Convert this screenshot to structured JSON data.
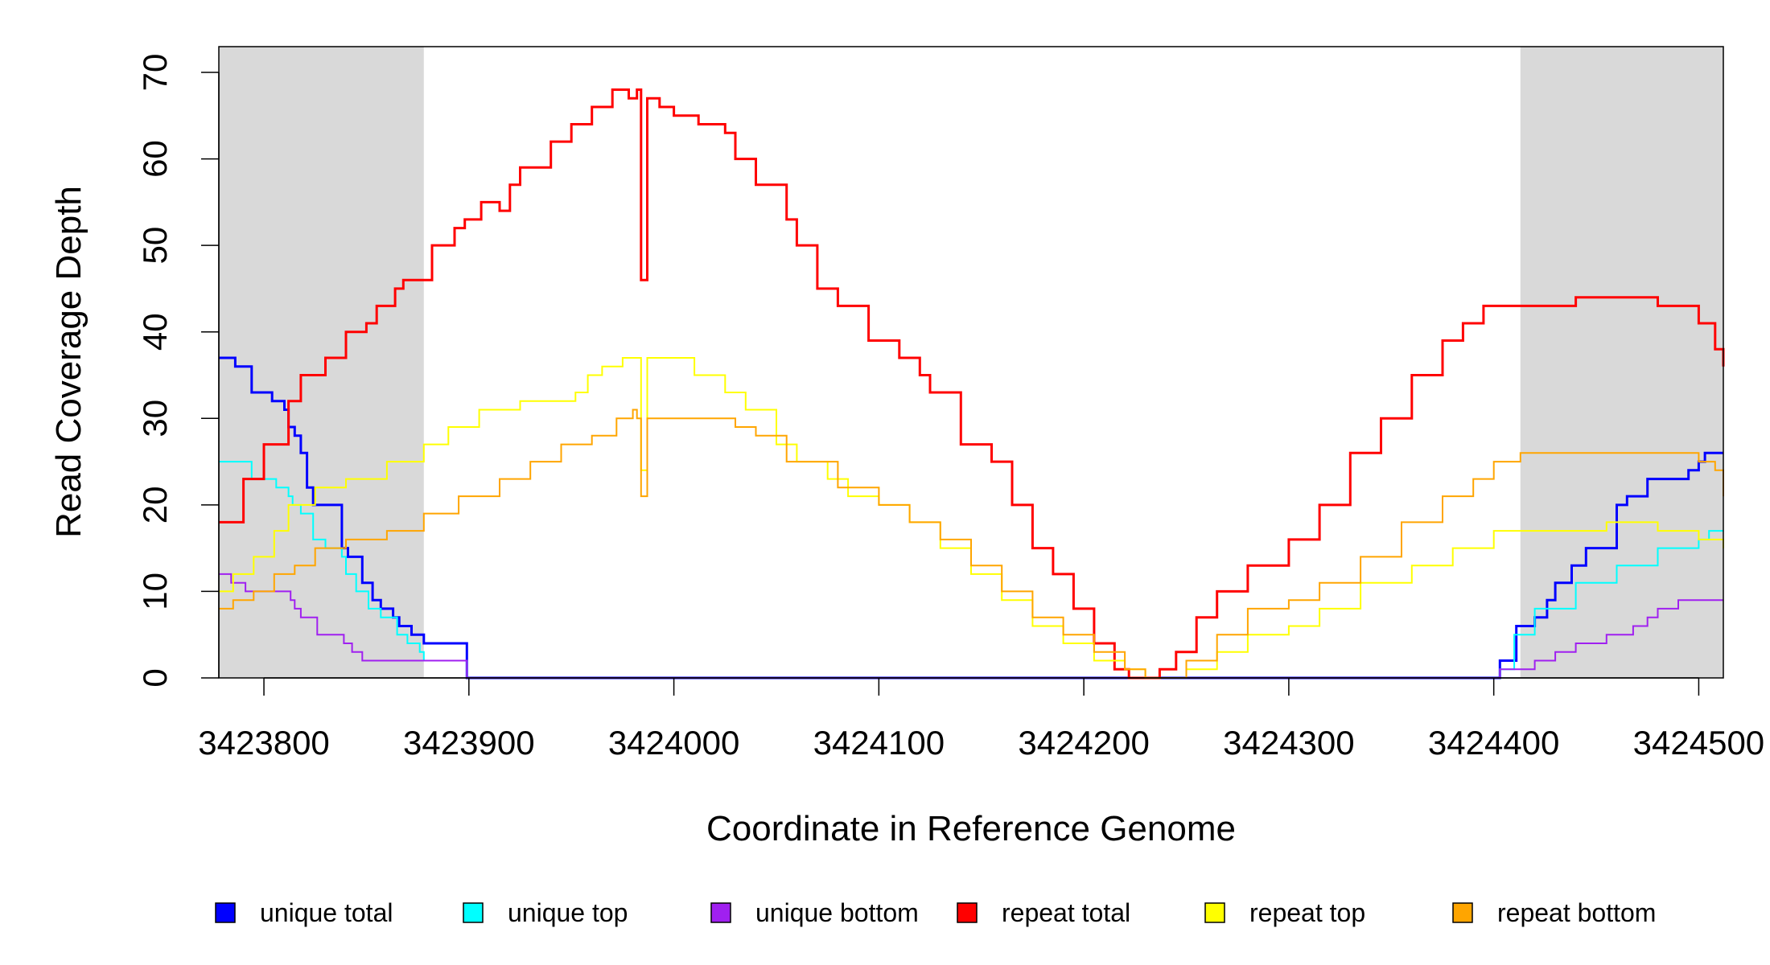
{
  "chart_data": {
    "type": "line",
    "xlabel": "Coordinate in Reference Genome",
    "ylabel": "Read Coverage Depth",
    "xlim": [
      3423778,
      3424512
    ],
    "ylim": [
      0,
      73
    ],
    "x_ticks": [
      3423800,
      3423900,
      3424000,
      3424100,
      3424200,
      3424300,
      3424400,
      3424500
    ],
    "x_tick_labels": [
      "3423800",
      "3423900",
      "3424000",
      "3424100",
      "3424200",
      "3424300",
      "3424400",
      "3424500"
    ],
    "y_ticks": [
      0,
      10,
      20,
      30,
      40,
      50,
      60,
      70
    ],
    "y_tick_labels": [
      "0",
      "10",
      "20",
      "30",
      "40",
      "50",
      "60",
      "70"
    ],
    "grid": false,
    "legend_position": "bottom",
    "shaded_regions": [
      {
        "x0": 3423778,
        "x1": 3423878,
        "color": "#d9d9d9"
      },
      {
        "x0": 3424413,
        "x1": 3424512,
        "color": "#d9d9d9"
      }
    ],
    "series": [
      {
        "name": "unique total",
        "color": "#0000ff",
        "width": 3,
        "x": [
          3423778,
          3423785,
          3423786,
          3423793,
          3423794,
          3423803,
          3423804,
          3423810,
          3423811,
          3423812,
          3423815,
          3423818,
          3423821,
          3423824,
          3423828,
          3423838,
          3423841,
          3423848,
          3423853,
          3423857,
          3423863,
          3423866,
          3423872,
          3423878,
          3423886,
          3423898,
          3423899,
          3424402,
          3424403,
          3424411,
          3424420,
          3424426,
          3424430,
          3424434,
          3424438,
          3424445,
          3424460,
          3424465,
          3424475,
          3424495,
          3424500,
          3424503,
          3424512
        ],
        "y": [
          37,
          37,
          36,
          36,
          33,
          33,
          32,
          31,
          31,
          29,
          28,
          26,
          22,
          20,
          20,
          15,
          14,
          11,
          9,
          8,
          7,
          6,
          5,
          4,
          4,
          4,
          0,
          0,
          2,
          6,
          7,
          9,
          11,
          11,
          13,
          15,
          20,
          21,
          23,
          24,
          25,
          26,
          26
        ]
      },
      {
        "name": "unique top",
        "color": "#00ffff",
        "width": 2,
        "x": [
          3423778,
          3423793,
          3423794,
          3423801,
          3423806,
          3423812,
          3423814,
          3423818,
          3423824,
          3423830,
          3423838,
          3423840,
          3423845,
          3423851,
          3423857,
          3423865,
          3423870,
          3423876,
          3423878,
          3423898,
          3423899,
          3424402,
          3424403,
          3424410,
          3424420,
          3424440,
          3424460,
          3424480,
          3424500,
          3424505,
          3424512
        ],
        "y": [
          25,
          25,
          23,
          23,
          22,
          21,
          20,
          19,
          16,
          15,
          14,
          12,
          10,
          8,
          7,
          5,
          4,
          3,
          2,
          2,
          0,
          0,
          1,
          5,
          8,
          11,
          13,
          15,
          16,
          17,
          17
        ]
      },
      {
        "name": "unique bottom",
        "color": "#a020f0",
        "width": 2,
        "x": [
          3423778,
          3423783,
          3423784,
          3423790,
          3423791,
          3423809,
          3423813,
          3423815,
          3423818,
          3423826,
          3423839,
          3423843,
          3423848,
          3423866,
          3423878,
          3423898,
          3423899,
          3424402,
          3424403,
          3424420,
          3424430,
          3424440,
          3424455,
          3424468,
          3424475,
          3424480,
          3424490,
          3424512
        ],
        "y": [
          12,
          12,
          11,
          11,
          10,
          10,
          9,
          8,
          7,
          5,
          4,
          3,
          2,
          2,
          2,
          2,
          0,
          0,
          1,
          2,
          3,
          4,
          5,
          6,
          7,
          8,
          9,
          9
        ]
      },
      {
        "name": "repeat total",
        "color": "#ff0000",
        "width": 3,
        "x": [
          3423778,
          3423781,
          3423790,
          3423800,
          3423812,
          3423818,
          3423830,
          3423840,
          3423850,
          3423855,
          3423864,
          3423868,
          3423882,
          3423893,
          3423898,
          3423906,
          3423915,
          3423920,
          3423925,
          3423940,
          3423950,
          3423960,
          3423970,
          3423978,
          3423982,
          3423983,
          3423984,
          3423986,
          3423987,
          3423992,
          3423993,
          3424000,
          3424012,
          3424025,
          3424030,
          3424040,
          3424055,
          3424060,
          3424070,
          3424080,
          3424095,
          3424110,
          3424120,
          3424125,
          3424140,
          3424155,
          3424165,
          3424175,
          3424185,
          3424195,
          3424205,
          3424215,
          3424222,
          3424230,
          3424231,
          3424237,
          3424245,
          3424255,
          3424265,
          3424280,
          3424300,
          3424315,
          3424330,
          3424345,
          3424360,
          3424375,
          3424385,
          3424395,
          3424405,
          3424412,
          3424425,
          3424440,
          3424450,
          3424465,
          3424480,
          3424490,
          3424500,
          3424508,
          3424512
        ],
        "y": [
          18,
          18,
          23,
          27,
          32,
          35,
          37,
          40,
          41,
          43,
          45,
          46,
          50,
          52,
          53,
          55,
          54,
          57,
          59,
          62,
          64,
          66,
          68,
          67,
          68,
          68,
          46,
          46,
          67,
          67,
          66,
          65,
          64,
          63,
          60,
          57,
          53,
          50,
          45,
          43,
          39,
          37,
          35,
          33,
          27,
          25,
          20,
          15,
          12,
          8,
          4,
          1,
          0,
          0,
          0,
          1,
          3,
          7,
          10,
          13,
          16,
          20,
          26,
          30,
          35,
          39,
          41,
          43,
          43,
          43,
          43,
          44,
          44,
          44,
          43,
          43,
          41,
          38,
          36
        ]
      },
      {
        "name": "repeat top",
        "color": "#ffff00",
        "width": 2,
        "x": [
          3423778,
          3423785,
          3423795,
          3423805,
          3423812,
          3423825,
          3423840,
          3423860,
          3423878,
          3423890,
          3423905,
          3423915,
          3423925,
          3423940,
          3423952,
          3423958,
          3423965,
          3423975,
          3423982,
          3423983,
          3423984,
          3423986,
          3423987,
          3423995,
          3424010,
          3424025,
          3424035,
          3424050,
          3424060,
          3424075,
          3424085,
          3424100,
          3424115,
          3424130,
          3424145,
          3424160,
          3424175,
          3424190,
          3424205,
          3424220,
          3424230,
          3424237,
          3424250,
          3424265,
          3424280,
          3424300,
          3424315,
          3424335,
          3424360,
          3424380,
          3424400,
          3424413,
          3424440,
          3424455,
          3424480,
          3424500,
          3424512
        ],
        "y": [
          10,
          12,
          14,
          17,
          20,
          22,
          23,
          25,
          27,
          29,
          31,
          31,
          32,
          32,
          33,
          35,
          36,
          37,
          37,
          37,
          24,
          24,
          37,
          37,
          35,
          33,
          31,
          27,
          25,
          23,
          21,
          20,
          18,
          15,
          12,
          9,
          6,
          4,
          2,
          1,
          0,
          0,
          1,
          3,
          5,
          6,
          8,
          11,
          13,
          15,
          17,
          17,
          17,
          18,
          17,
          16,
          15
        ]
      },
      {
        "name": "repeat bottom",
        "color": "#ffa500",
        "width": 2,
        "x": [
          3423778,
          3423785,
          3423795,
          3423805,
          3423815,
          3423825,
          3423840,
          3423860,
          3423878,
          3423895,
          3423915,
          3423930,
          3423945,
          3423960,
          3423972,
          3423980,
          3423982,
          3423983,
          3423984,
          3423986,
          3423987,
          3423995,
          3424012,
          3424030,
          3424040,
          3424055,
          3424080,
          3424100,
          3424115,
          3424130,
          3424145,
          3424160,
          3424175,
          3424190,
          3424205,
          3424220,
          3424230,
          3424237,
          3424250,
          3424265,
          3424280,
          3424300,
          3424315,
          3424335,
          3424355,
          3424375,
          3424390,
          3424400,
          3424413,
          3424440,
          3424480,
          3424490,
          3424500,
          3424508,
          3424512
        ],
        "y": [
          8,
          9,
          10,
          12,
          13,
          15,
          16,
          17,
          19,
          21,
          23,
          25,
          27,
          28,
          30,
          31,
          30,
          30,
          21,
          21,
          30,
          30,
          30,
          29,
          28,
          25,
          22,
          20,
          18,
          16,
          13,
          10,
          7,
          5,
          3,
          1,
          0,
          0,
          2,
          5,
          8,
          9,
          11,
          14,
          18,
          21,
          23,
          25,
          26,
          26,
          26,
          26,
          25,
          24,
          21
        ]
      }
    ]
  }
}
